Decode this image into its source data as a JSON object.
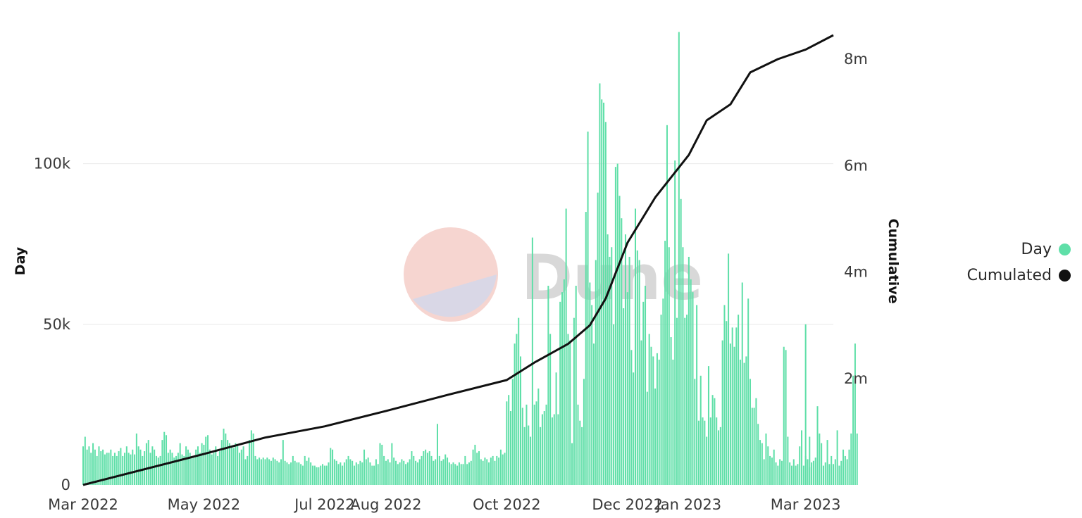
{
  "colors": {
    "day": "#5fdfa8",
    "cumulated": "#111111",
    "grid": "#e8e8e8"
  },
  "watermark": {
    "text": "Dune"
  },
  "legend": [
    {
      "label": "Day",
      "color": "#5fdfa8"
    },
    {
      "label": "Cumulated",
      "color": "#111111"
    }
  ],
  "chart_data": {
    "type": "bar",
    "title": "",
    "x_start": "2022-03-01",
    "x_end": "2023-03-15",
    "xticks": [
      {
        "date": "2022-03-01",
        "label": "Mar 2022"
      },
      {
        "date": "2022-05-01",
        "label": "May 2022"
      },
      {
        "date": "2022-07-01",
        "label": "Jul 2022"
      },
      {
        "date": "2022-08-01",
        "label": "Aug 2022"
      },
      {
        "date": "2022-10-01",
        "label": "Oct 2022"
      },
      {
        "date": "2022-12-01",
        "label": "Dec 2022"
      },
      {
        "date": "2023-01-01",
        "label": "Jan 2023"
      },
      {
        "date": "2023-03-01",
        "label": "Mar 2023"
      }
    ],
    "y_left": {
      "label": "Day",
      "ylim": [
        0,
        140000
      ],
      "ticks": [
        0,
        50000,
        100000
      ],
      "tick_labels": [
        "0",
        "50k",
        "100k"
      ]
    },
    "y_right": {
      "label": "Cumulative",
      "ylim": [
        0,
        8450000
      ],
      "ticks": [
        2000000,
        4000000,
        6000000,
        8000000
      ],
      "tick_labels": [
        "2m",
        "4m",
        "6m",
        "8m"
      ]
    },
    "grid": true,
    "legend_position": "right",
    "series": [
      {
        "name": "Day",
        "type": "bar",
        "monthly_daily_values": [
          {
            "month": "2022-03",
            "values": [
              12000,
              15000,
              11000,
              12000,
              10000,
              13000,
              11000,
              9000,
              12000,
              10500,
              11000,
              9500,
              10000,
              10000,
              11000,
              9000,
              10000,
              9000,
              10500,
              11500,
              9000,
              10000,
              12000,
              10000,
              9500,
              11000,
              9500,
              16000,
              12000,
              11000,
              9000
            ]
          },
          {
            "month": "2022-04",
            "values": [
              10500,
              13000,
              14000,
              10000,
              12000,
              11000,
              9000,
              8500,
              9000,
              14000,
              16500,
              15500,
              10000,
              11000,
              10000,
              8500,
              9000,
              10000,
              13000,
              9500,
              9000,
              12000,
              11000,
              10000,
              9000,
              8500,
              11000,
              12000,
              10000,
              13000
            ]
          },
          {
            "month": "2022-05",
            "values": [
              12500,
              15000,
              15500,
              11000,
              9500,
              10000,
              12000,
              9000,
              10500,
              14000,
              17500,
              16000,
              14000,
              13000,
              12000,
              11500,
              13000,
              12500,
              10000,
              11000,
              12000,
              8000,
              9000,
              14000,
              17000,
              16000,
              9000,
              8000,
              8500,
              8000,
              8500
            ]
          },
          {
            "month": "2022-06",
            "values": [
              8000,
              8500,
              8000,
              7500,
              8500,
              8000,
              7500,
              7000,
              8000,
              14000,
              7500,
              7000,
              6500,
              7000,
              9000,
              7500,
              7000,
              7000,
              6500,
              6000,
              9000,
              7500,
              8500,
              7000,
              6000,
              6000,
              5500,
              5500,
              6000,
              6500
            ]
          },
          {
            "month": "2022-07",
            "values": [
              6000,
              6000,
              7000,
              11500,
              11000,
              8000,
              7500,
              6500,
              7000,
              6000,
              7000,
              8000,
              9000,
              8000,
              7500,
              6000,
              7000,
              6500,
              7500,
              7000,
              11000,
              8000,
              8500,
              7000,
              6000,
              6000,
              8000,
              6500,
              13000,
              12500,
              9000
            ]
          },
          {
            "month": "2022-08",
            "values": [
              7500,
              8000,
              7000,
              13000,
              8500,
              7500,
              6500,
              7000,
              8000,
              7500,
              6500,
              7000,
              8000,
              10500,
              9000,
              7500,
              7000,
              8000,
              9000,
              10500,
              11000,
              10000,
              10500,
              9000,
              7500,
              8000,
              19000,
              9000,
              7500,
              8000,
              9500
            ]
          },
          {
            "month": "2022-09",
            "values": [
              8500,
              7000,
              6500,
              7000,
              6500,
              6000,
              7000,
              6500,
              6500,
              9000,
              6500,
              7000,
              7500,
              11000,
              12500,
              10000,
              10500,
              8000,
              7500,
              8500,
              8000,
              7000,
              8500,
              9000,
              7500,
              9000,
              8500,
              11000,
              9500,
              10000
            ]
          },
          {
            "month": "2022-10",
            "values": [
              26000,
              28000,
              23000,
              33000,
              44000,
              47000,
              52000,
              40000,
              24000,
              18000,
              25000,
              18500,
              15000,
              77000,
              25000,
              26000,
              30000,
              18000,
              22000,
              23000,
              25000,
              62000,
              47000,
              21000,
              22000,
              35000,
              22000,
              57000,
              60000,
              64000,
              86000
            ]
          },
          {
            "month": "2022-11",
            "values": [
              47000,
              45000,
              13000,
              52000,
              62000,
              25000,
              20000,
              18000,
              33000,
              85000,
              110000,
              63000,
              56000,
              44000,
              70000,
              91000,
              125000,
              120000,
              119000,
              113000,
              78000,
              71000,
              74000,
              50000,
              99000,
              100000,
              90000,
              83000,
              55000,
              78000
            ]
          },
          {
            "month": "2022-12",
            "values": [
              60000,
              71000,
              42000,
              35000,
              86000,
              73000,
              70000,
              45000,
              57000,
              62000,
              29000,
              47000,
              43000,
              40000,
              30000,
              41000,
              39000,
              53000,
              58000,
              76000,
              112000,
              74000,
              46000,
              39000,
              101000,
              52000,
              141000,
              89000,
              74000,
              52000,
              53000
            ]
          },
          {
            "month": "2023-01",
            "values": [
              71000,
              64000,
              60000,
              33000,
              56000,
              20000,
              34000,
              21000,
              20000,
              15000,
              37000,
              21000,
              28000,
              27000,
              21000,
              17000,
              18000,
              45000,
              56000,
              51000,
              72000,
              44000,
              49000,
              43000,
              49000,
              53000,
              39000,
              63000,
              38000,
              40000,
              58000
            ]
          },
          {
            "month": "2023-02",
            "values": [
              33000,
              24000,
              24000,
              27000,
              19000,
              14000,
              13000,
              8000,
              16000,
              12000,
              9000,
              8500,
              11000,
              7000,
              6000,
              8000,
              7500,
              43000,
              42000,
              15000,
              7000,
              6000,
              8000,
              6000,
              6500,
              12000,
              17000,
              6000,
              9000,
              8000,
              5500
            ]
          },
          {
            "month": "2023-03",
            "values": [
              50000,
              8000,
              15000,
              7000,
              7500,
              8500,
              24500,
              16000,
              13000,
              6000,
              7000,
              14000,
              6500,
              9000,
              6500,
              8000,
              17000,
              6000,
              7500,
              11000,
              9000,
              8000,
              11000,
              16000,
              34000,
              44000,
              16000
            ]
          }
        ]
      },
      {
        "name": "Cumulated",
        "type": "line",
        "points": [
          {
            "date": "2022-03-01",
            "value": 0
          },
          {
            "date": "2022-05-01",
            "value": 580000
          },
          {
            "date": "2022-06-01",
            "value": 890000
          },
          {
            "date": "2022-07-01",
            "value": 1100000
          },
          {
            "date": "2022-08-01",
            "value": 1390000
          },
          {
            "date": "2022-09-01",
            "value": 1690000
          },
          {
            "date": "2022-10-01",
            "value": 1970000
          },
          {
            "date": "2022-10-15",
            "value": 2300000
          },
          {
            "date": "2022-11-01",
            "value": 2650000
          },
          {
            "date": "2022-11-12",
            "value": 3000000
          },
          {
            "date": "2022-11-20",
            "value": 3500000
          },
          {
            "date": "2022-12-01",
            "value": 4550000
          },
          {
            "date": "2022-12-15",
            "value": 5400000
          },
          {
            "date": "2023-01-01",
            "value": 6200000
          },
          {
            "date": "2023-01-10",
            "value": 6850000
          },
          {
            "date": "2023-01-22",
            "value": 7150000
          },
          {
            "date": "2023-02-01",
            "value": 7750000
          },
          {
            "date": "2023-02-15",
            "value": 8000000
          },
          {
            "date": "2023-03-01",
            "value": 8180000
          },
          {
            "date": "2023-03-15",
            "value": 8450000
          }
        ]
      }
    ]
  }
}
